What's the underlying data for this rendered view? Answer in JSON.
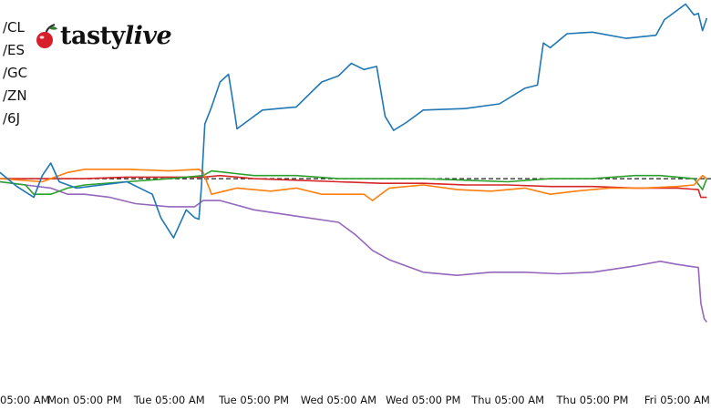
{
  "logo": {
    "brand": "tasty",
    "brand_italic": "live",
    "icon": "cherry-icon"
  },
  "chart_data": {
    "type": "line",
    "title": "",
    "xlabel": "",
    "ylabel": "",
    "x_ticks": [
      "05:00 AM",
      "Mon 05:00 PM",
      "Tue 05:00 AM",
      "Tue 05:00 PM",
      "Wed 05:00 AM",
      "Wed 05:00 PM",
      "Thu 05:00 AM",
      "Thu 05:00 PM",
      "Fri 05:00 AM"
    ],
    "x_range": [
      0,
      8.4
    ],
    "ylim": [
      -1.25,
      1.0
    ],
    "baseline": 0,
    "grid": false,
    "legend_position": "top-left",
    "series": [
      {
        "name": "/CL",
        "color": "#1f77b4",
        "points": [
          [
            0,
            0.04
          ],
          [
            0.2,
            -0.05
          ],
          [
            0.4,
            -0.12
          ],
          [
            0.5,
            0.02
          ],
          [
            0.6,
            0.1
          ],
          [
            0.7,
            -0.02
          ],
          [
            0.9,
            -0.06
          ],
          [
            1.2,
            -0.04
          ],
          [
            1.5,
            -0.02
          ],
          [
            1.8,
            -0.1
          ],
          [
            1.9,
            -0.25
          ],
          [
            2.05,
            -0.38
          ],
          [
            2.2,
            -0.2
          ],
          [
            2.3,
            -0.25
          ],
          [
            2.35,
            -0.26
          ],
          [
            2.38,
            -0.05
          ],
          [
            2.42,
            0.35
          ],
          [
            2.5,
            0.46
          ],
          [
            2.6,
            0.62
          ],
          [
            2.7,
            0.67
          ],
          [
            2.75,
            0.5
          ],
          [
            2.8,
            0.32
          ],
          [
            2.95,
            0.38
          ],
          [
            3.1,
            0.44
          ],
          [
            3.3,
            0.45
          ],
          [
            3.5,
            0.46
          ],
          [
            3.8,
            0.62
          ],
          [
            4.0,
            0.66
          ],
          [
            4.15,
            0.74
          ],
          [
            4.3,
            0.7
          ],
          [
            4.45,
            0.72
          ],
          [
            4.55,
            0.4
          ],
          [
            4.65,
            0.31
          ],
          [
            4.8,
            0.36
          ],
          [
            5.0,
            0.44
          ],
          [
            5.5,
            0.45
          ],
          [
            5.9,
            0.48
          ],
          [
            6.2,
            0.58
          ],
          [
            6.35,
            0.6
          ],
          [
            6.42,
            0.87
          ],
          [
            6.5,
            0.84
          ],
          [
            6.7,
            0.93
          ],
          [
            7.0,
            0.94
          ],
          [
            7.4,
            0.9
          ],
          [
            7.75,
            0.92
          ],
          [
            7.85,
            1.02
          ],
          [
            8.1,
            1.12
          ],
          [
            8.2,
            1.05
          ],
          [
            8.25,
            1.06
          ],
          [
            8.3,
            0.95
          ],
          [
            8.35,
            1.03
          ]
        ]
      },
      {
        "name": "/ES",
        "color": "#ff7f0e",
        "points": [
          [
            0,
            0.0
          ],
          [
            0.5,
            -0.02
          ],
          [
            0.8,
            0.04
          ],
          [
            1.0,
            0.06
          ],
          [
            1.5,
            0.06
          ],
          [
            2.0,
            0.05
          ],
          [
            2.35,
            0.06
          ],
          [
            2.4,
            0.04
          ],
          [
            2.5,
            -0.1
          ],
          [
            2.8,
            -0.06
          ],
          [
            3.2,
            -0.08
          ],
          [
            3.5,
            -0.06
          ],
          [
            3.8,
            -0.1
          ],
          [
            4.3,
            -0.1
          ],
          [
            4.4,
            -0.14
          ],
          [
            4.6,
            -0.06
          ],
          [
            5.0,
            -0.04
          ],
          [
            5.4,
            -0.07
          ],
          [
            5.8,
            -0.08
          ],
          [
            6.2,
            -0.06
          ],
          [
            6.5,
            -0.1
          ],
          [
            6.8,
            -0.08
          ],
          [
            7.2,
            -0.06
          ],
          [
            7.6,
            -0.06
          ],
          [
            8.0,
            -0.05
          ],
          [
            8.2,
            -0.04
          ],
          [
            8.3,
            0.02
          ],
          [
            8.35,
            0.0
          ]
        ]
      },
      {
        "name": "/GC",
        "color": "#2ca02c",
        "points": [
          [
            0,
            -0.02
          ],
          [
            0.3,
            -0.04
          ],
          [
            0.4,
            -0.1
          ],
          [
            0.6,
            -0.1
          ],
          [
            0.8,
            -0.06
          ],
          [
            1.0,
            -0.04
          ],
          [
            1.5,
            -0.02
          ],
          [
            2.0,
            0.0
          ],
          [
            2.4,
            0.02
          ],
          [
            2.5,
            0.05
          ],
          [
            3.0,
            0.02
          ],
          [
            3.5,
            0.02
          ],
          [
            4.0,
            0.0
          ],
          [
            4.5,
            0.0
          ],
          [
            5.0,
            0.0
          ],
          [
            5.5,
            -0.01
          ],
          [
            6.0,
            -0.02
          ],
          [
            6.5,
            0.0
          ],
          [
            7.0,
            0.0
          ],
          [
            7.5,
            0.02
          ],
          [
            7.8,
            0.02
          ],
          [
            8.2,
            0.0
          ],
          [
            8.3,
            -0.07
          ],
          [
            8.35,
            0.0
          ]
        ]
      },
      {
        "name": "/ZN",
        "color": "#d62728",
        "points": [
          [
            0,
            0.0
          ],
          [
            0.5,
            0.0
          ],
          [
            1.0,
            0.0
          ],
          [
            1.5,
            0.01
          ],
          [
            2.0,
            0.01
          ],
          [
            2.4,
            0.01
          ],
          [
            2.6,
            0.02
          ],
          [
            3.0,
            0.0
          ],
          [
            3.5,
            -0.01
          ],
          [
            4.0,
            -0.02
          ],
          [
            4.5,
            -0.03
          ],
          [
            5.0,
            -0.03
          ],
          [
            5.5,
            -0.04
          ],
          [
            6.0,
            -0.04
          ],
          [
            6.5,
            -0.05
          ],
          [
            7.0,
            -0.05
          ],
          [
            7.5,
            -0.06
          ],
          [
            8.0,
            -0.06
          ],
          [
            8.25,
            -0.07
          ],
          [
            8.28,
            -0.12
          ],
          [
            8.35,
            -0.12
          ]
        ]
      },
      {
        "name": "/6J",
        "color": "#9467bd",
        "points": [
          [
            0,
            -0.02
          ],
          [
            0.3,
            -0.04
          ],
          [
            0.6,
            -0.06
          ],
          [
            0.8,
            -0.1
          ],
          [
            1.0,
            -0.1
          ],
          [
            1.3,
            -0.12
          ],
          [
            1.6,
            -0.16
          ],
          [
            2.0,
            -0.18
          ],
          [
            2.3,
            -0.18
          ],
          [
            2.4,
            -0.14
          ],
          [
            2.6,
            -0.14
          ],
          [
            3.0,
            -0.2
          ],
          [
            3.5,
            -0.24
          ],
          [
            4.0,
            -0.28
          ],
          [
            4.2,
            -0.36
          ],
          [
            4.4,
            -0.46
          ],
          [
            4.6,
            -0.52
          ],
          [
            5.0,
            -0.6
          ],
          [
            5.4,
            -0.62
          ],
          [
            5.8,
            -0.6
          ],
          [
            6.2,
            -0.6
          ],
          [
            6.6,
            -0.61
          ],
          [
            7.0,
            -0.6
          ],
          [
            7.5,
            -0.56
          ],
          [
            7.8,
            -0.53
          ],
          [
            8.0,
            -0.55
          ],
          [
            8.25,
            -0.57
          ],
          [
            8.28,
            -0.8
          ],
          [
            8.32,
            -0.9
          ],
          [
            8.35,
            -0.92
          ]
        ]
      }
    ]
  }
}
